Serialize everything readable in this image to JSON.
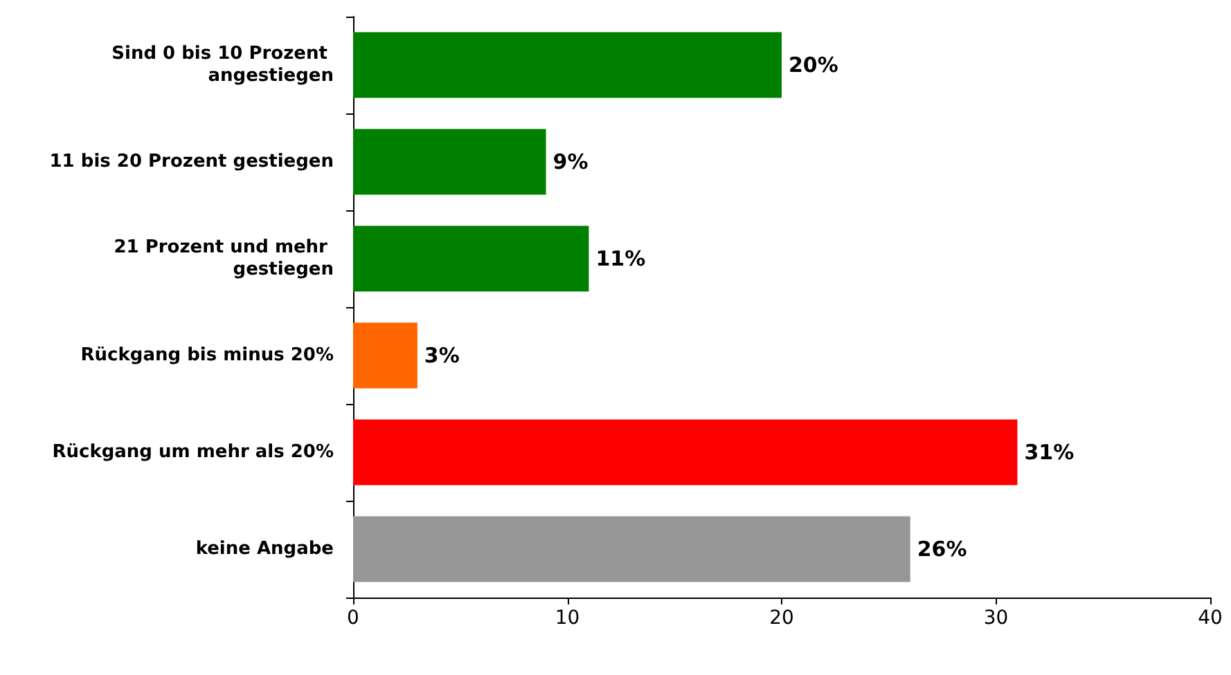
{
  "chart_data": {
    "type": "bar",
    "orientation": "horizontal",
    "categories": [
      "Sind 0 bis 10 Prozent angestiegen",
      "11 bis 20 Prozent gestiegen",
      "21 Prozent und mehr gestiegen",
      "Rückgang bis minus 20%",
      "Rückgang um mehr als 20%",
      "keine Angabe"
    ],
    "values": [
      20,
      9,
      11,
      3,
      31,
      26
    ],
    "colors": [
      "#008000",
      "#008000",
      "#008000",
      "#ff6600",
      "#ff0000",
      "#969696"
    ],
    "value_labels": [
      "20%",
      "9%",
      "11%",
      "3%",
      "31%",
      "26%"
    ],
    "xlim": [
      0,
      40
    ],
    "xticks": [
      0,
      10,
      20,
      30,
      40
    ],
    "grid": false
  }
}
